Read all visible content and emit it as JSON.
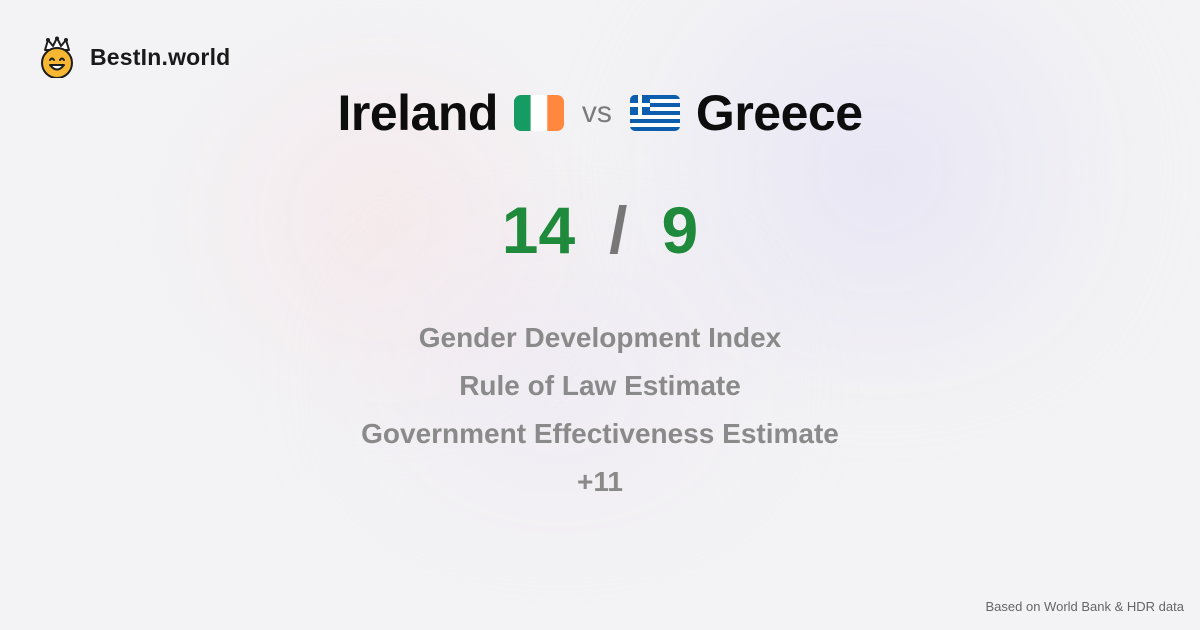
{
  "brand": {
    "name": "BestIn.world",
    "logo_icon": "crown-smiley-icon"
  },
  "matchup": {
    "left_country": "Ireland",
    "left_flag": "ireland-flag-icon",
    "vs_label": "vs",
    "right_country": "Greece",
    "right_flag": "greece-flag-icon"
  },
  "scores": {
    "left": "14",
    "separator": "/",
    "right": "9",
    "color": "#1f8a3b"
  },
  "metrics": [
    "Gender Development Index",
    "Rule of Law Estimate",
    "Government Effectiveness Estimate",
    "+11"
  ],
  "footer": {
    "note": "Based on World Bank & HDR data"
  },
  "colors": {
    "background": "#f3f3f5",
    "ireland_green": "#169b62",
    "ireland_orange": "#ff883e",
    "greece_blue": "#0d5eaf",
    "logo_yellow": "#f7b733"
  }
}
